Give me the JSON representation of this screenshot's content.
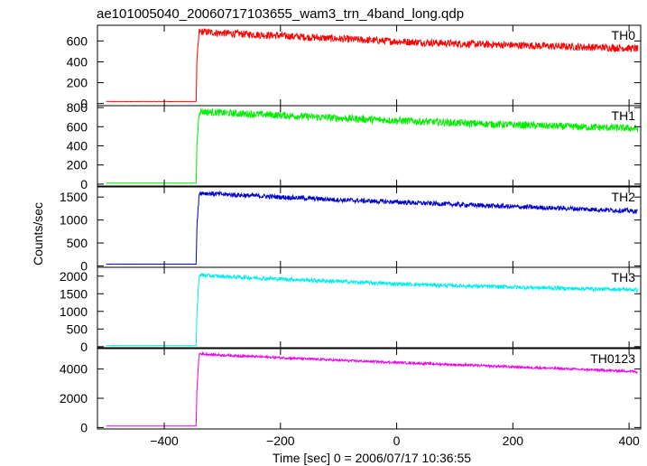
{
  "figure": {
    "title": "ae101005040_20060717103655_wam3_trn_4band_long.qdp",
    "xlabel": "Time [sec] 0 = 2006/07/17 10:36:55",
    "ylabel": "Counts/sec"
  },
  "chart_data": {
    "type": "line",
    "title": "ae101005040_20060717103655_wam3_trn_4band_long.qdp",
    "xlabel": "Time [sec] 0 = 2006/07/17 10:36:55",
    "ylabel": "Counts/sec",
    "xlim": [
      -515,
      420
    ],
    "xticks": [
      -400,
      -200,
      0,
      200,
      400
    ],
    "grid": false,
    "panels": [
      {
        "name": "TH0",
        "color": "#ff0000",
        "ylim": [
          -20,
          750
        ],
        "yticks": [
          0,
          200,
          400,
          600
        ],
        "series": {
          "x": [
            -500,
            -345,
            -344,
            -340,
            -300,
            -200,
            -100,
            0,
            100,
            200,
            300,
            400,
            415
          ],
          "y": [
            20,
            20,
            380,
            690,
            675,
            650,
            620,
            595,
            575,
            560,
            545,
            530,
            525
          ]
        },
        "noise_amplitude": 35
      },
      {
        "name": "TH1",
        "color": "#00ee00",
        "ylim": [
          -20,
          820
        ],
        "yticks": [
          0,
          200,
          400,
          600,
          800
        ],
        "series": {
          "x": [
            -500,
            -345,
            -344,
            -340,
            -300,
            -200,
            -100,
            0,
            100,
            200,
            300,
            400,
            415
          ],
          "y": [
            10,
            10,
            400,
            760,
            745,
            720,
            690,
            665,
            640,
            620,
            600,
            585,
            580
          ]
        },
        "noise_amplitude": 38
      },
      {
        "name": "TH2",
        "color": "#0000cc",
        "ylim": [
          -30,
          1720
        ],
        "yticks": [
          0,
          500,
          1000,
          1500
        ],
        "series": {
          "x": [
            -500,
            -345,
            -344,
            -340,
            -300,
            -200,
            -100,
            0,
            100,
            200,
            300,
            400,
            415
          ],
          "y": [
            40,
            40,
            800,
            1590,
            1560,
            1500,
            1440,
            1390,
            1340,
            1290,
            1250,
            1200,
            1180
          ]
        },
        "noise_amplitude": 50
      },
      {
        "name": "TH3",
        "color": "#00eeee",
        "ylim": [
          -30,
          2250
        ],
        "yticks": [
          0,
          500,
          1000,
          1500,
          2000
        ],
        "series": {
          "x": [
            -500,
            -345,
            -344,
            -340,
            -300,
            -200,
            -100,
            0,
            100,
            200,
            300,
            400,
            415
          ],
          "y": [
            30,
            30,
            900,
            2030,
            1990,
            1920,
            1850,
            1780,
            1730,
            1690,
            1650,
            1620,
            1610
          ]
        },
        "noise_amplitude": 55
      },
      {
        "name": "TH0123",
        "color": "#ee00ee",
        "ylim": [
          -100,
          5400
        ],
        "yticks": [
          0,
          2000,
          4000
        ],
        "series": {
          "x": [
            -500,
            -345,
            -344,
            -340,
            -300,
            -200,
            -100,
            0,
            100,
            200,
            300,
            400,
            415
          ],
          "y": [
            100,
            100,
            2500,
            5050,
            4950,
            4780,
            4600,
            4450,
            4300,
            4150,
            4000,
            3850,
            3800
          ]
        },
        "noise_amplitude": 80
      }
    ]
  }
}
